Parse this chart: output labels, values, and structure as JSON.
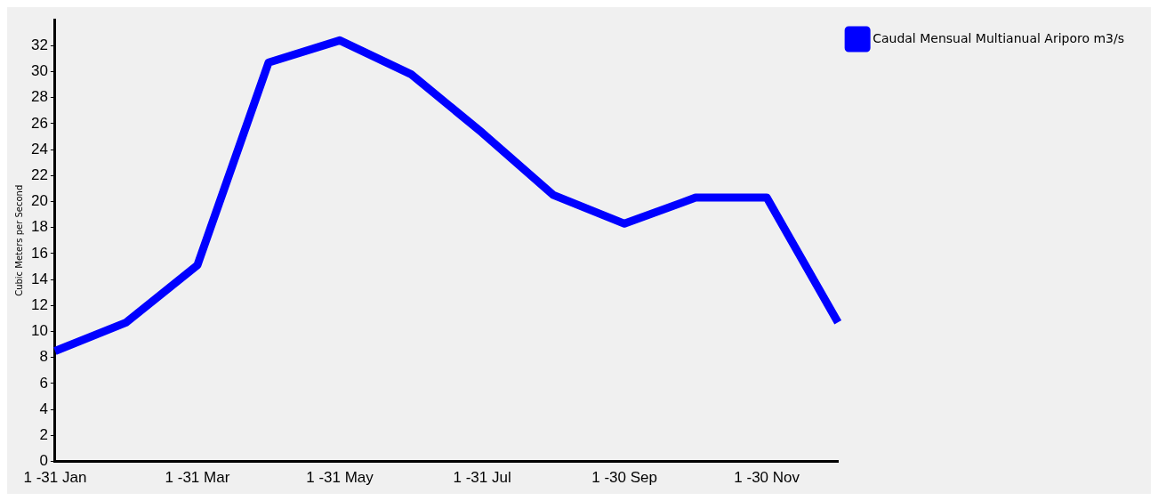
{
  "chart_data": {
    "type": "line",
    "ylabel": "Cubic Meters per Second",
    "categories": [
      "1 -31 Jan",
      null,
      "1 -31 Mar",
      null,
      "1 -31 May",
      null,
      "1 -31 Jul",
      null,
      "1 -30 Sep",
      null,
      "1 -30 Nov",
      null
    ],
    "series": [
      {
        "name": "Caudal Mensual Multianual Ariporo m3/s",
        "color": "#0000ff",
        "values": [
          8.5,
          10.7,
          15.1,
          30.7,
          32.4,
          29.8,
          25.3,
          20.5,
          18.3,
          20.3,
          20.3,
          10.7
        ]
      }
    ],
    "ylim": [
      0,
      34
    ],
    "yticks": [
      0,
      2,
      4,
      6,
      8,
      10,
      12,
      14,
      16,
      18,
      20,
      22,
      24,
      26,
      28,
      30,
      32
    ],
    "grid": false,
    "legend": "top right",
    "marker": "none",
    "line_style": "solid"
  }
}
